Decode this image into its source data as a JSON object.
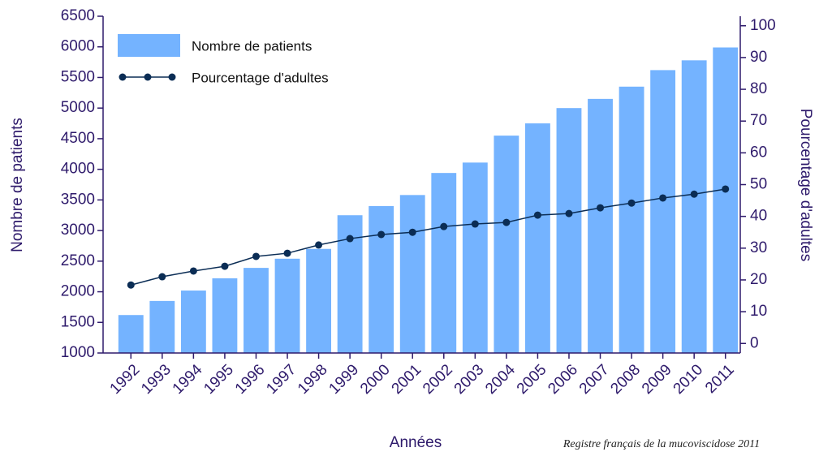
{
  "chart_data": {
    "type": "bar-line",
    "x_label": "Années",
    "y_label": "Nombre de patients",
    "y2_label": "Pourcentage d'adultes",
    "note": "Registre français de la mucoviscidose 2011",
    "categories": [
      "1992",
      "1993",
      "1994",
      "1995",
      "1996",
      "1997",
      "1998",
      "1999",
      "2000",
      "2001",
      "2002",
      "2003",
      "2004",
      "2005",
      "2006",
      "2007",
      "2008",
      "2009",
      "2010",
      "2011"
    ],
    "series": [
      {
        "name": "Nombre de patients",
        "kind": "bar",
        "color": "#74b3ff",
        "values": [
          1620,
          1850,
          2020,
          2220,
          2390,
          2540,
          2700,
          3250,
          3400,
          3580,
          3940,
          4110,
          4550,
          4750,
          5000,
          5150,
          5350,
          5620,
          5780,
          5990
        ]
      },
      {
        "name": "Pourcentage d'adultes",
        "kind": "line",
        "axis": "y2",
        "color": "#0b2d55",
        "values": [
          18.4,
          21,
          22.8,
          24.3,
          27.4,
          28.4,
          31,
          33,
          34.3,
          35,
          36.8,
          37.6,
          38.1,
          40.4,
          40.9,
          42.7,
          44.2,
          45.8,
          47,
          48.6
        ]
      }
    ],
    "ylim": [
      1000,
      6500
    ],
    "yticks": [
      1000,
      1500,
      2000,
      2500,
      3000,
      3500,
      4000,
      4500,
      5000,
      5500,
      6000,
      6500
    ],
    "y2lim": [
      -3,
      103
    ],
    "y2ticks": [
      0,
      10,
      20,
      30,
      40,
      50,
      60,
      70,
      80,
      90,
      100
    ],
    "legend": "upper left"
  }
}
